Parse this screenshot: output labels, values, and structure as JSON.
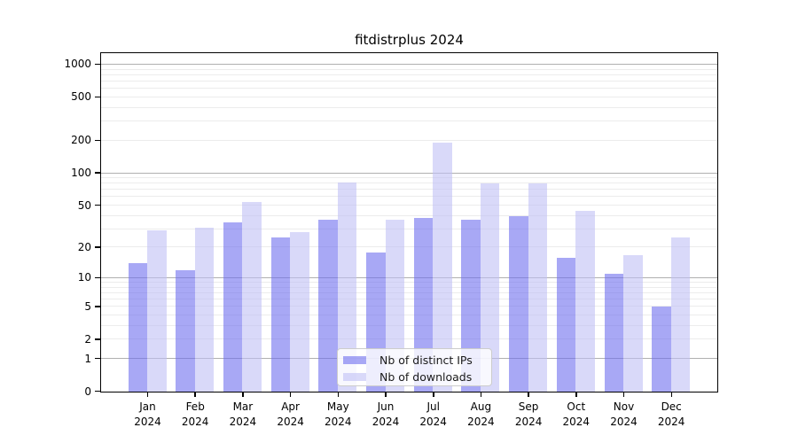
{
  "chart_data": {
    "type": "bar",
    "title": "fitdistrplus 2024",
    "categories": [
      "Jan",
      "Feb",
      "Mar",
      "Apr",
      "May",
      "Jun",
      "Jul",
      "Aug",
      "Sep",
      "Oct",
      "Nov",
      "Dec"
    ],
    "x_year_label": "2024",
    "series": [
      {
        "name": "Nb of distinct IPs",
        "color": "rgba(110,110,238,0.6)",
        "solid_color": "#a8a8f5",
        "values": [
          14,
          12,
          35,
          25,
          37,
          18,
          38,
          37,
          40,
          16,
          11,
          5
        ]
      },
      {
        "name": "Nb of downloads",
        "color": "rgba(192,192,245,0.6)",
        "solid_color": "#d9d9f9",
        "values": [
          29,
          31,
          54,
          28,
          82,
          37,
          192,
          80,
          81,
          45,
          17,
          25
        ]
      }
    ],
    "y_ticks": [
      0,
      1,
      2,
      5,
      10,
      20,
      50,
      100,
      200,
      500,
      1000
    ],
    "y_scale": "log10(1+x)",
    "ylim": [
      0,
      1320
    ],
    "grid": true,
    "legend_position": "bottom-center",
    "colors": {
      "major_grid": "#b0b0b0",
      "minor_grid": "#ececec",
      "axis": "#000000",
      "background": "#ffffff"
    }
  }
}
